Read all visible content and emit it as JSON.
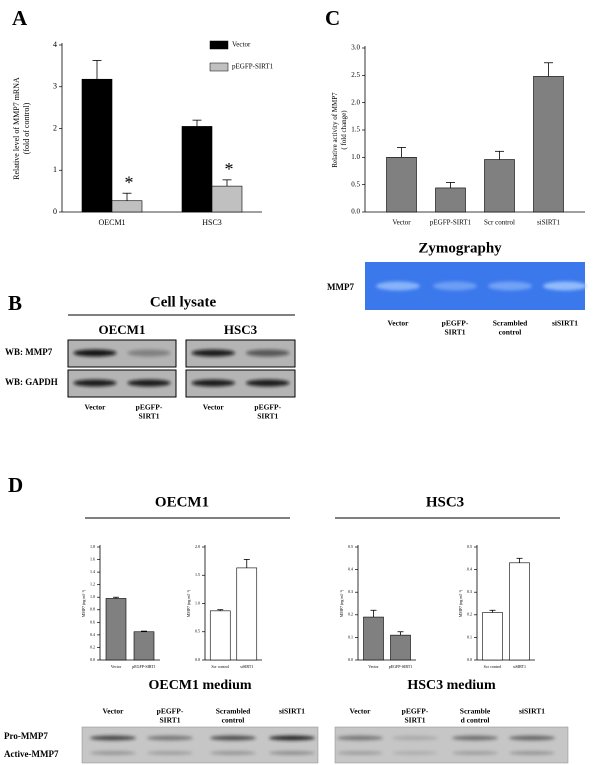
{
  "panel_labels": [
    "A",
    "B",
    "C",
    "D"
  ],
  "chart_data": [
    {
      "type": "bar",
      "ylabel": [
        "Relative level of MMP7 mRNA",
        "(fold of control)"
      ],
      "categories": [
        "OECM1",
        "HSC3"
      ],
      "series": [
        {
          "name": "Vector",
          "color": "#000000",
          "values": [
            3.18,
            2.05
          ],
          "errors": [
            0.45,
            0.15
          ]
        },
        {
          "name": "pEGFP-SIRT1",
          "color": "#c0c0c0",
          "values": [
            0.27,
            0.62
          ],
          "errors": [
            0.18,
            0.15
          ]
        }
      ],
      "annotations": [
        "*",
        "*"
      ],
      "legend": "upper right",
      "ylim": [
        0,
        4
      ],
      "yticks": [
        0,
        1,
        2,
        3,
        4
      ]
    },
    {
      "type": "bar",
      "ylabel": [
        "Relative activity of MMP7",
        "( fold change)"
      ],
      "categories": [
        "Vector",
        "pEGFP-SIRT1",
        "Scr control",
        "siSIRT1"
      ],
      "series": [
        {
          "color": "#808080",
          "values": [
            1.0,
            0.44,
            0.96,
            2.48
          ],
          "errors": [
            0.18,
            0.1,
            0.15,
            0.25
          ]
        }
      ],
      "ylim": [
        0,
        3
      ],
      "yticks": [
        {
          "value": 0,
          "label": "0.0"
        },
        0.5,
        {
          "value": 1,
          "label": "1.0"
        },
        1.5,
        {
          "value": 2,
          "label": "2.0"
        },
        2.5,
        {
          "value": 3,
          "label": "3.0"
        }
      ]
    },
    {
      "type": "bar",
      "ylabel": [
        "MMP7 (ng ml⁻¹)"
      ],
      "categories": [
        "Vector",
        "pEGFP-SIRT1"
      ],
      "series": [
        {
          "color": "#808080",
          "values": [
            0.98,
            0.45
          ],
          "errors": [
            0.02,
            0.01
          ]
        }
      ],
      "ylim": [
        0,
        1.8
      ],
      "yticks": [
        {
          "value": 0,
          "label": "0.0"
        },
        0.2,
        0.4,
        0.6,
        0.8,
        {
          "value": 1,
          "label": "1.0"
        },
        1.2,
        1.4,
        1.6,
        1.8
      ]
    },
    {
      "type": "bar",
      "ylabel": [
        "MMP7 (ng ml⁻¹)"
      ],
      "categories": [
        "Scr control",
        "siSIRT1"
      ],
      "series": [
        {
          "color": "#ffffff",
          "values": [
            0.87,
            1.63
          ],
          "errors": [
            0.02,
            0.15
          ]
        }
      ],
      "ylim": [
        0,
        2
      ],
      "yticks": [
        {
          "value": 0,
          "label": "0.0"
        },
        0.5,
        {
          "value": 1,
          "label": "1.0"
        },
        1.5,
        {
          "value": 2,
          "label": "2.0"
        }
      ]
    },
    {
      "type": "bar",
      "ylabel": [
        "MMP7 (ng ml⁻¹)"
      ],
      "categories": [
        "Vector",
        "pEGFP-SIRT1"
      ],
      "series": [
        {
          "color": "#808080",
          "values": [
            0.19,
            0.11
          ],
          "errors": [
            0.03,
            0.015
          ]
        }
      ],
      "ylim": [
        0,
        0.5
      ],
      "yticks": [
        {
          "value": 0,
          "label": "0.0"
        },
        0.1,
        0.2,
        0.3,
        0.4,
        0.5
      ]
    },
    {
      "type": "bar",
      "ylabel": [
        "MMP7 (ng ml⁻¹)"
      ],
      "categories": [
        "Scr control",
        "siSIRT1"
      ],
      "series": [
        {
          "color": "#ffffff",
          "values": [
            0.21,
            0.43
          ],
          "errors": [
            0.01,
            0.02
          ]
        }
      ],
      "ylim": [
        0,
        0.5
      ],
      "yticks": [
        {
          "value": 0,
          "label": "0.0"
        },
        0.1,
        0.2,
        0.3,
        0.4,
        0.5
      ]
    }
  ],
  "cell_lysate": {
    "title": "Cell lysate",
    "rows": [
      "WB: MMP7",
      "WB: GAPDH"
    ],
    "groups": [
      {
        "name": "OECM1",
        "lanes": [
          [
            "Vector"
          ],
          [
            "pEGFP-",
            "SIRT1"
          ]
        ]
      },
      {
        "name": "HSC3",
        "lanes": [
          [
            "Vector"
          ],
          [
            "pEGFP-",
            "SIRT1"
          ]
        ]
      }
    ]
  },
  "zymography": {
    "title": "Zymography",
    "row": "MMP7",
    "lanes": [
      [
        "Vector"
      ],
      [
        "pEGFP-",
        "SIRT1"
      ],
      [
        "Scrambled",
        "control"
      ],
      [
        "siSIRT1"
      ]
    ]
  },
  "panel_d": {
    "groups": [
      "OECM1",
      "HSC3"
    ]
  },
  "medium": {
    "rows": [
      "Pro-MMP7",
      "Active-MMP7"
    ],
    "groups": [
      {
        "name": "OECM1 medium",
        "lanes": [
          [
            "Vector"
          ],
          [
            "pEGFP-",
            "SIRT1"
          ],
          [
            "Scrambled",
            "control"
          ],
          [
            "siSIRT1"
          ]
        ]
      },
      {
        "name": "HSC3 medium",
        "lanes": [
          [
            "Vector"
          ],
          [
            "pEGFP-",
            "SIRT1"
          ],
          [
            "Scramble",
            "d control"
          ],
          [
            "siSIRT1"
          ]
        ]
      }
    ]
  }
}
